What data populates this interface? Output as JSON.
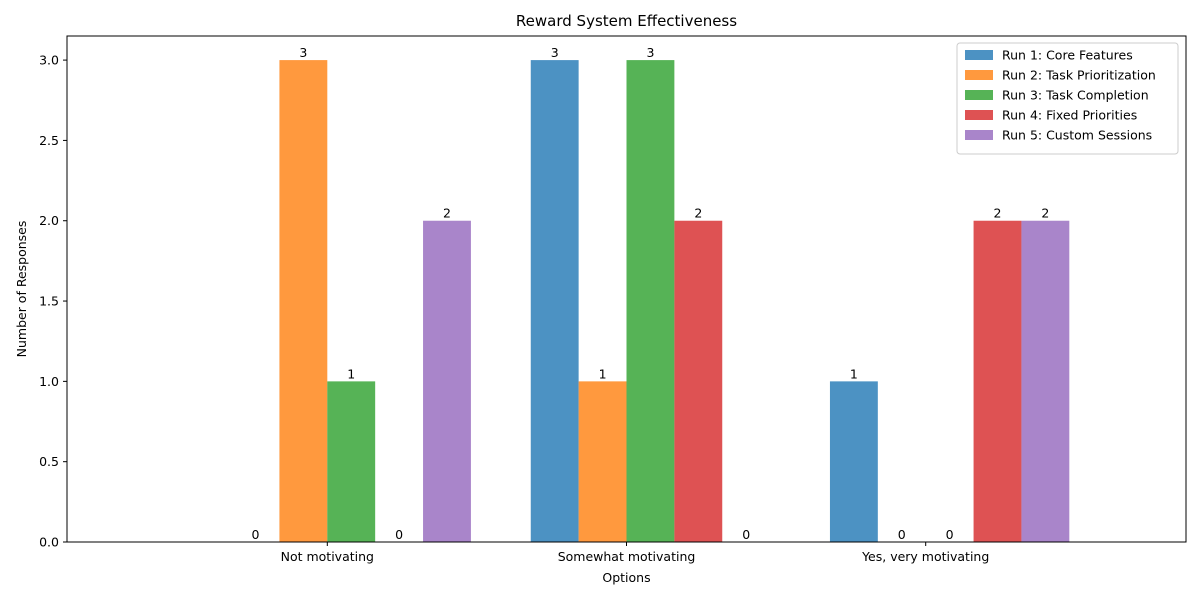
{
  "chart_data": {
    "type": "bar",
    "title": "Reward System Effectiveness",
    "xlabel": "Options",
    "ylabel": "Number of Responses",
    "categories": [
      "Not motivating",
      "Somewhat motivating",
      "Yes, very motivating"
    ],
    "series": [
      {
        "name": "Run 1: Core Features",
        "color": "#1f77b4",
        "values": [
          0,
          3,
          1
        ]
      },
      {
        "name": "Run 2: Task Prioritization",
        "color": "#ff7f0e",
        "values": [
          3,
          1,
          0
        ]
      },
      {
        "name": "Run 3: Task Completion",
        "color": "#2ca02c",
        "values": [
          1,
          3,
          0
        ]
      },
      {
        "name": "Run 4: Fixed Priorities",
        "color": "#d62728",
        "values": [
          0,
          2,
          2
        ]
      },
      {
        "name": "Run 5: Custom Sessions",
        "color": "#9467bd",
        "values": [
          2,
          0,
          2
        ]
      }
    ],
    "yticks": [
      "0.0",
      "0.5",
      "1.0",
      "1.5",
      "2.0",
      "2.5",
      "3.0"
    ],
    "ylim": [
      0,
      3.15
    ],
    "bar_opacity": 0.8,
    "legend_position": "top-right",
    "grid": false
  }
}
